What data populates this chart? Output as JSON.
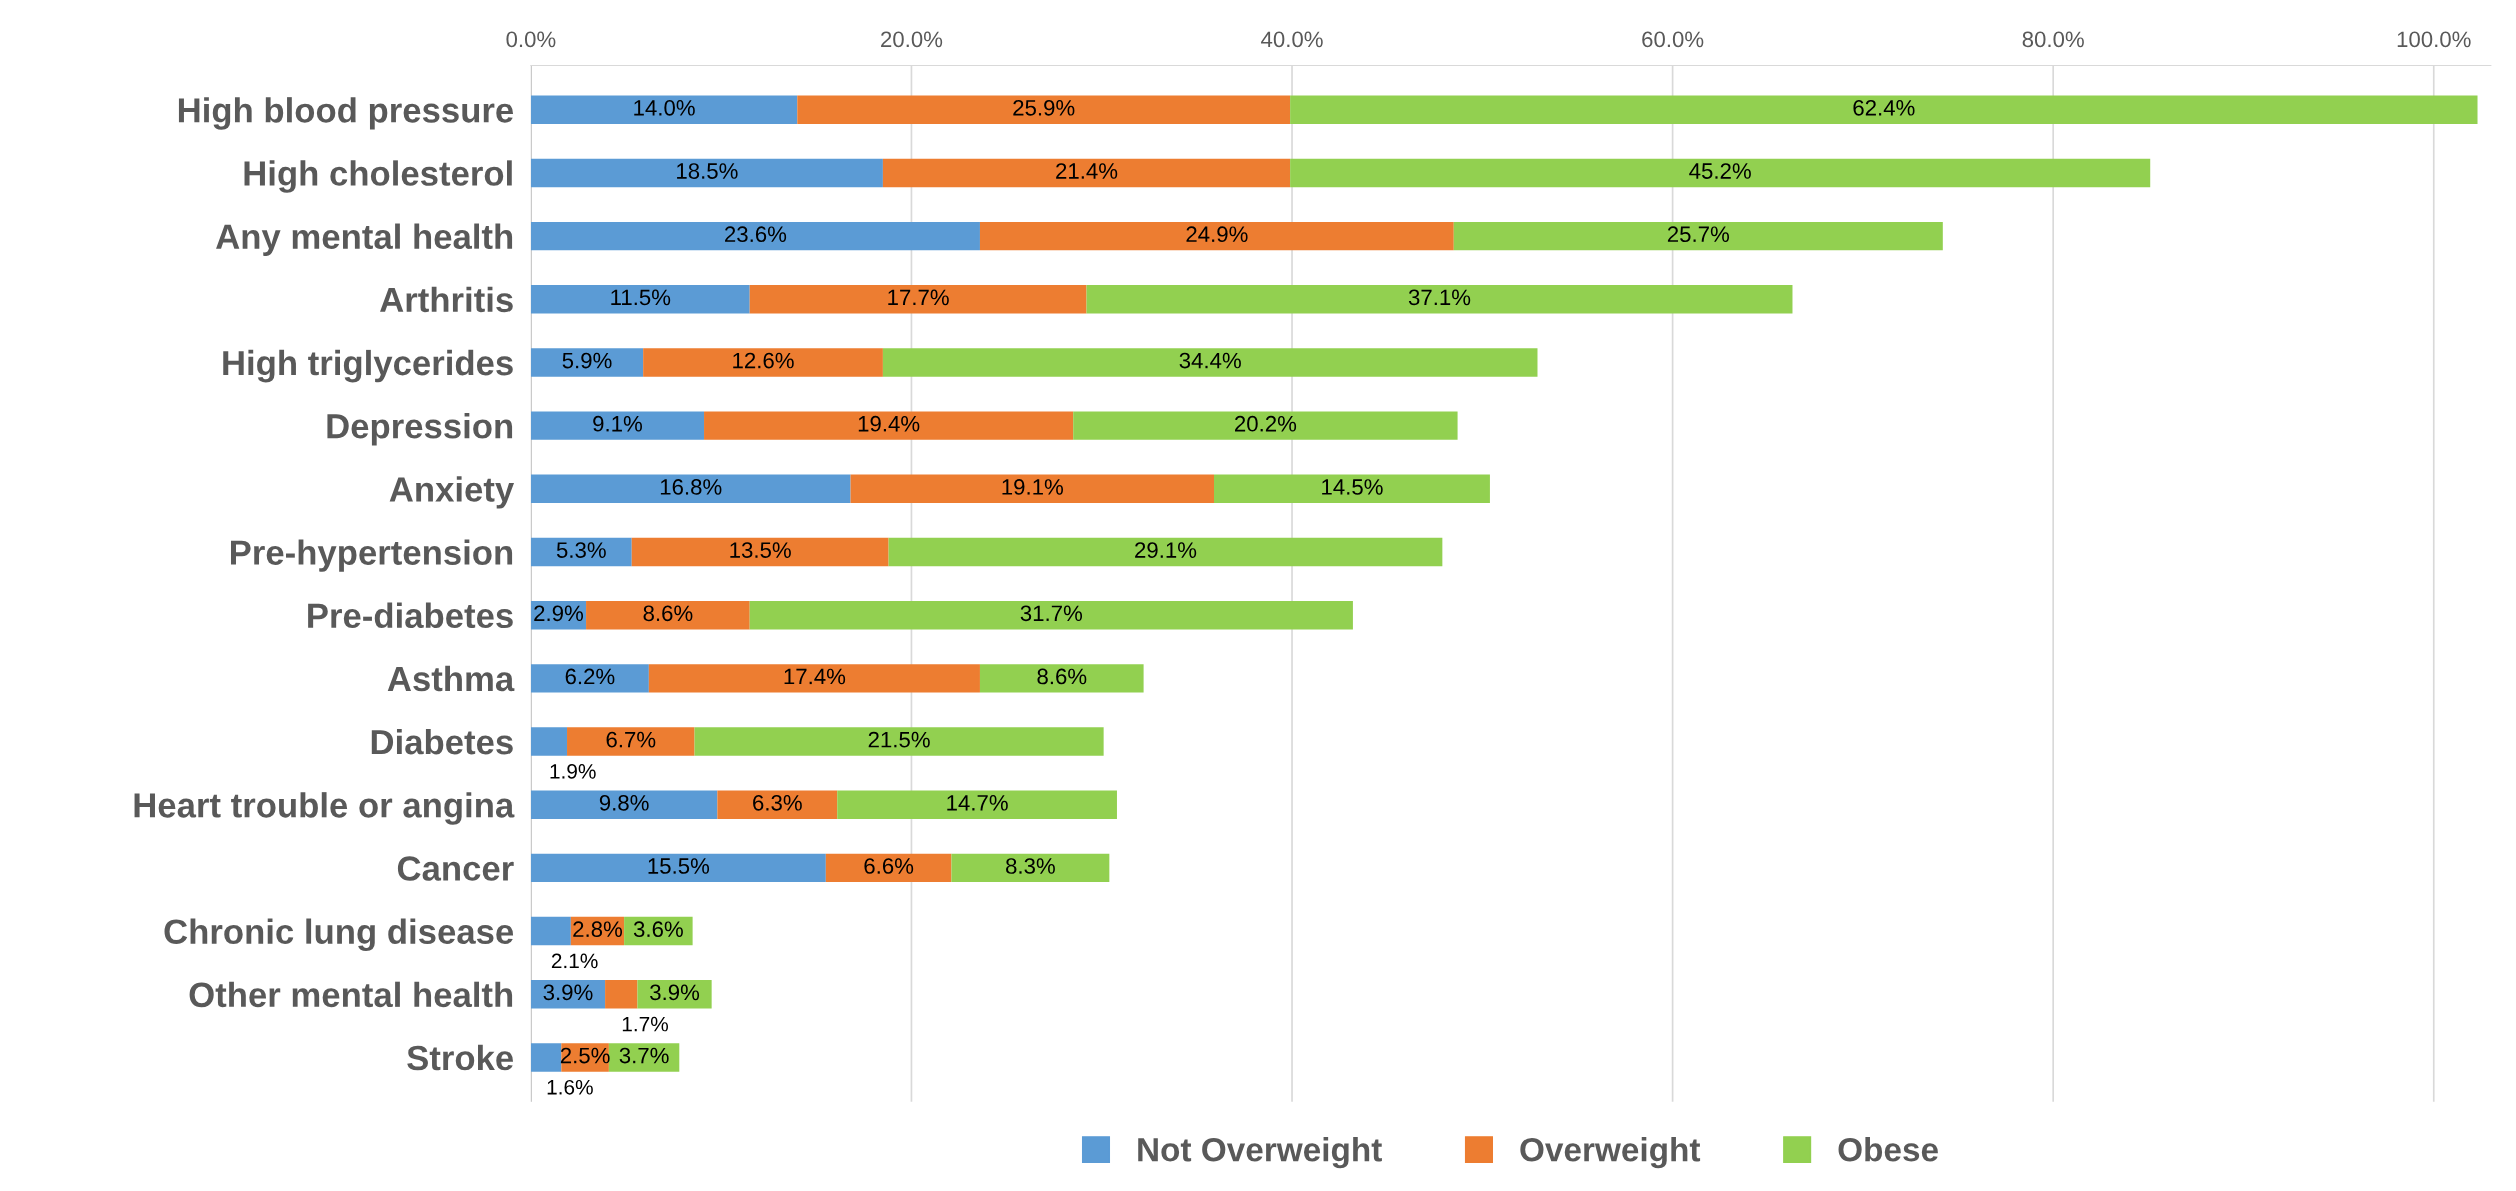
{
  "chart_data": {
    "type": "bar",
    "orientation": "horizontal",
    "stacked": true,
    "categories": [
      "High blood pressure",
      "High cholesterol",
      "Any mental health",
      "Arthritis",
      "High triglycerides",
      "Depression",
      "Anxiety",
      "Pre-hypertension",
      "Pre-diabetes",
      "Asthma",
      "Diabetes",
      "Heart trouble or angina",
      "Cancer",
      "Chronic lung disease",
      "Other mental health",
      "Stroke"
    ],
    "series": [
      {
        "name": "Not Overweight",
        "color": "#5b9bd5",
        "values": [
          14.0,
          18.5,
          23.6,
          11.5,
          5.9,
          9.1,
          16.8,
          5.3,
          2.9,
          6.2,
          1.9,
          9.8,
          15.5,
          2.1,
          3.9,
          1.6
        ],
        "value_labels": [
          "14.0%",
          "18.5%",
          "23.6%",
          "11.5%",
          "5.9%",
          "9.1%",
          "16.8%",
          "5.3%",
          "2.9%",
          "6.2%",
          "1.9%",
          "9.8%",
          "15.5%",
          "2.1%",
          "3.9%",
          "1.6%"
        ]
      },
      {
        "name": "Overweight",
        "color": "#ed7d31",
        "values": [
          25.9,
          21.4,
          24.9,
          17.7,
          12.6,
          19.4,
          19.1,
          13.5,
          8.6,
          17.4,
          6.7,
          6.3,
          6.6,
          2.8,
          1.7,
          2.5
        ],
        "value_labels": [
          "25.9%",
          "21.4%",
          "24.9%",
          "17.7%",
          "12.6%",
          "19.4%",
          "19.1%",
          "13.5%",
          "8.6%",
          "17.4%",
          "6.7%",
          "6.3%",
          "6.6%",
          "2.8%",
          "1.7%",
          "2.5%"
        ]
      },
      {
        "name": "Obese",
        "color": "#92d050",
        "values": [
          62.4,
          45.2,
          25.7,
          37.1,
          34.4,
          20.2,
          14.5,
          29.1,
          31.7,
          8.6,
          21.5,
          14.7,
          8.3,
          3.6,
          3.9,
          3.7
        ],
        "value_labels": [
          "62.4%",
          "45.2%",
          "25.7%",
          "37.1%",
          "34.4%",
          "20.2%",
          "14.5%",
          "29.1%",
          "31.7%",
          "8.6%",
          "21.5%",
          "14.7%",
          "8.3%",
          "3.6%",
          "3.9%",
          "3.7%"
        ]
      }
    ],
    "xlim": [
      0,
      103
    ],
    "xticks": [
      {
        "value": 0,
        "label": "0.0%"
      },
      {
        "value": 20,
        "label": "20.0%"
      },
      {
        "value": 40,
        "label": "40.0%"
      },
      {
        "value": 60,
        "label": "60.0%"
      },
      {
        "value": 80,
        "label": "80.0%"
      },
      {
        "value": 100,
        "label": "100.0%"
      }
    ],
    "grid": "x",
    "legend": "bottom"
  }
}
